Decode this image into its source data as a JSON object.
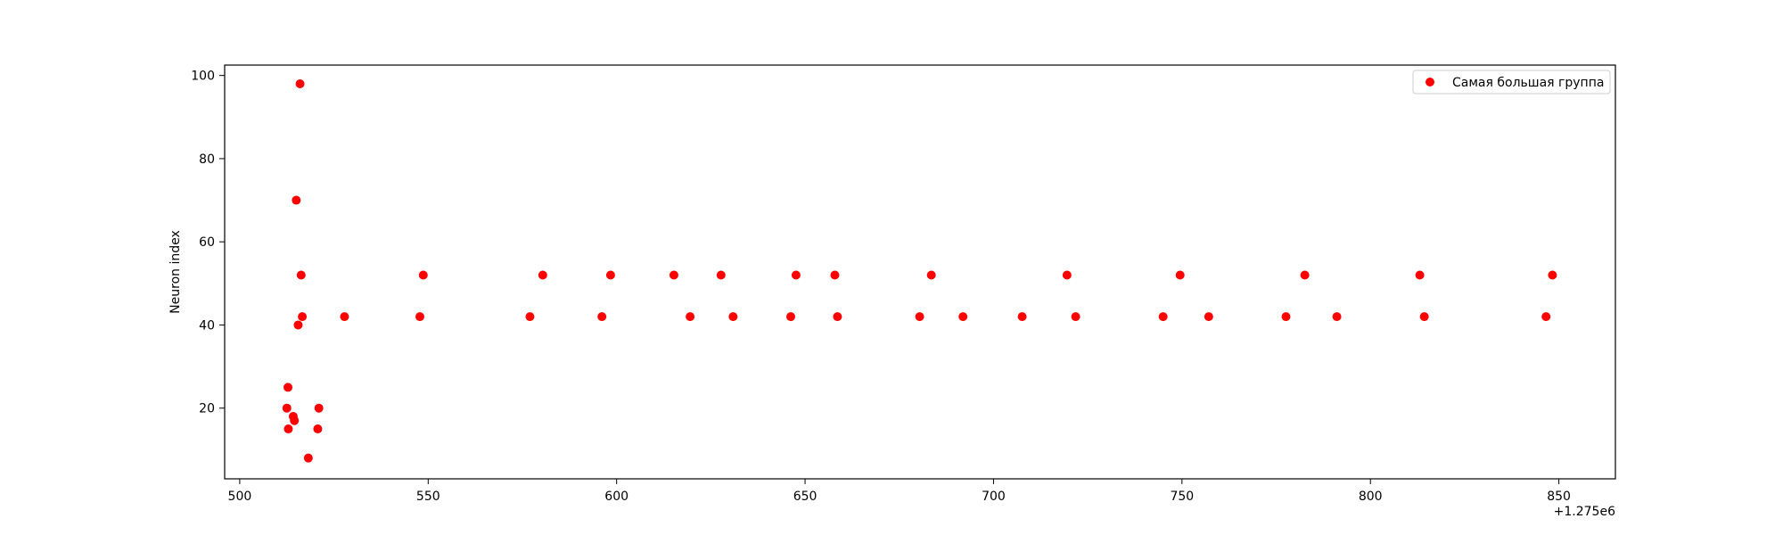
{
  "chart_data": {
    "type": "scatter",
    "title": "",
    "xlabel": "",
    "ylabel": "Neuron index",
    "x_offset_label": "+1.275e6",
    "xlim": [
      496,
      865
    ],
    "ylim": [
      3,
      102.5
    ],
    "xticks": [
      500,
      550,
      600,
      650,
      700,
      750,
      800,
      850
    ],
    "yticks": [
      20,
      40,
      60,
      80,
      100
    ],
    "grid": false,
    "legend_position": "top-right",
    "series": [
      {
        "name": "Самая большая группа",
        "color": "#ff0000",
        "x": [
          512.5,
          512.8,
          512.9,
          514.2,
          514.5,
          515.0,
          515.5,
          516.0,
          516.3,
          516.6,
          518.2,
          520.7,
          521.0,
          527.8,
          547.8,
          548.7,
          577.0,
          580.4,
          596.1,
          598.4,
          615.2,
          619.5,
          627.7,
          630.9,
          646.2,
          647.6,
          657.9,
          658.6,
          680.4,
          683.5,
          691.9,
          707.6,
          719.5,
          721.8,
          745.0,
          749.5,
          757.1,
          777.6,
          782.6,
          791.1,
          813.1,
          814.3,
          846.6,
          848.3
        ],
        "y": [
          20,
          25,
          15,
          18,
          17,
          70,
          40,
          98,
          52,
          42,
          8,
          15,
          20,
          42,
          42,
          52,
          42,
          52,
          42,
          52,
          52,
          42,
          52,
          42,
          42,
          52,
          52,
          42,
          42,
          52,
          42,
          42,
          52,
          42,
          42,
          52,
          42,
          42,
          52,
          42,
          52,
          42,
          42,
          52
        ]
      }
    ]
  }
}
